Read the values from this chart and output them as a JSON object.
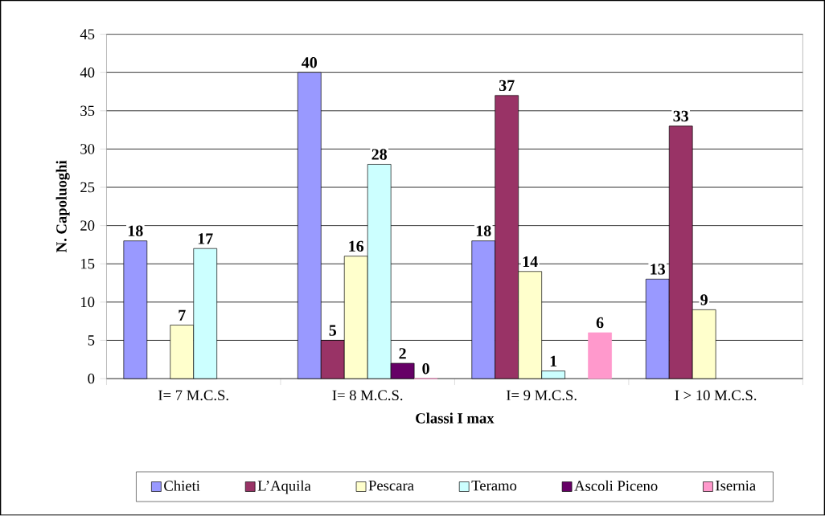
{
  "chart_data": {
    "type": "bar",
    "xlabel": "Classi I max",
    "ylabel": "N. Capoluoghi",
    "categories": [
      "I= 7 M.C.S.",
      "I= 8 M.C.S.",
      "I= 9 M.C.S.",
      "I > 10 M.C.S."
    ],
    "series": [
      {
        "name": "Chieti",
        "color": "#9999ff",
        "values": [
          18,
          40,
          18,
          13
        ]
      },
      {
        "name": "L’Aquila",
        "color": "#993366",
        "values": [
          null,
          5,
          37,
          33
        ]
      },
      {
        "name": "Pescara",
        "color": "#ffffcc",
        "values": [
          7,
          16,
          14,
          9
        ]
      },
      {
        "name": "Teramo",
        "color": "#ccffff",
        "values": [
          17,
          28,
          1,
          null
        ]
      },
      {
        "name": "Ascoli Piceno",
        "color": "#660066",
        "values": [
          null,
          2,
          null,
          null
        ]
      },
      {
        "name": "Isernia",
        "color": "#ff99cc",
        "values": [
          null,
          0,
          6,
          null
        ]
      }
    ],
    "ylim": [
      0,
      45
    ],
    "yticks": [
      0,
      5,
      10,
      15,
      20,
      25,
      30,
      35,
      40,
      45
    ],
    "grid": "y",
    "legend": "bottom",
    "data_labels": true
  }
}
